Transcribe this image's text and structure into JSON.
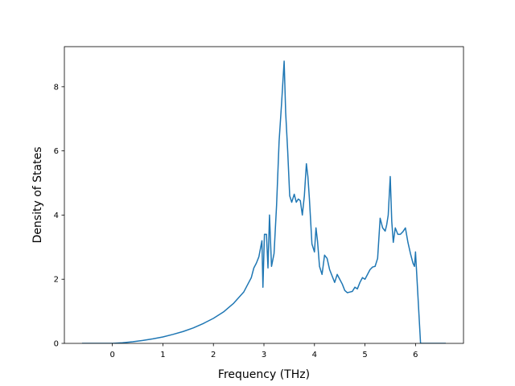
{
  "chart_data": {
    "type": "line",
    "title": "",
    "xlabel": "Frequency (THz)",
    "ylabel": "Density of States",
    "xlim": [
      -0.95,
      6.95
    ],
    "ylim": [
      0,
      9.25
    ],
    "xticks": [
      0,
      1,
      2,
      3,
      4,
      5,
      6
    ],
    "yticks": [
      0,
      2,
      4,
      6,
      8
    ],
    "xtick_labels": [
      "0",
      "1",
      "2",
      "3",
      "4",
      "5",
      "6"
    ],
    "ytick_labels": [
      "0",
      "2",
      "4",
      "6",
      "8"
    ],
    "grid": false,
    "legend": "none",
    "color": "#1f77b4",
    "series": [
      {
        "x": [
          -0.6,
          -0.4,
          -0.2,
          0.0,
          0.2,
          0.4,
          0.6,
          0.8,
          1.0,
          1.2,
          1.4,
          1.6,
          1.8,
          2.0,
          2.2,
          2.4,
          2.6,
          2.7,
          2.75,
          2.8,
          2.85,
          2.9,
          2.93,
          2.96,
          2.98,
          3.01,
          3.05,
          3.08,
          3.11,
          3.15,
          3.2,
          3.25,
          3.3,
          3.35,
          3.4,
          3.43,
          3.47,
          3.51,
          3.55,
          3.6,
          3.64,
          3.68,
          3.72,
          3.76,
          3.8,
          3.84,
          3.87,
          3.9,
          3.95,
          4.0,
          4.03,
          4.06,
          4.1,
          4.15,
          4.2,
          4.25,
          4.3,
          4.35,
          4.4,
          4.45,
          4.5,
          4.55,
          4.6,
          4.65,
          4.7,
          4.75,
          4.8,
          4.85,
          4.9,
          4.95,
          5.0,
          5.05,
          5.1,
          5.15,
          5.2,
          5.25,
          5.3,
          5.35,
          5.4,
          5.43,
          5.46,
          5.5,
          5.53,
          5.56,
          5.6,
          5.65,
          5.7,
          5.75,
          5.8,
          5.85,
          5.9,
          5.95,
          5.98,
          6.0,
          6.1,
          6.3,
          6.6
        ],
        "y": [
          0,
          0,
          0,
          0,
          0.02,
          0.05,
          0.09,
          0.14,
          0.2,
          0.28,
          0.37,
          0.48,
          0.62,
          0.78,
          0.98,
          1.25,
          1.6,
          1.9,
          2.05,
          2.35,
          2.5,
          2.7,
          2.95,
          3.2,
          1.75,
          3.4,
          3.4,
          2.35,
          4.0,
          2.4,
          2.8,
          4.3,
          6.3,
          7.5,
          8.8,
          7.2,
          6.0,
          4.6,
          4.4,
          4.65,
          4.4,
          4.5,
          4.45,
          4.0,
          4.6,
          5.6,
          5.2,
          4.5,
          3.1,
          2.85,
          3.6,
          3.2,
          2.4,
          2.15,
          2.75,
          2.65,
          2.3,
          2.1,
          1.9,
          2.15,
          2.0,
          1.85,
          1.65,
          1.58,
          1.6,
          1.62,
          1.75,
          1.7,
          1.9,
          2.05,
          2.0,
          2.15,
          2.3,
          2.38,
          2.4,
          2.65,
          3.9,
          3.6,
          3.5,
          3.7,
          4.0,
          5.2,
          3.8,
          3.15,
          3.6,
          3.4,
          3.4,
          3.48,
          3.6,
          3.15,
          2.8,
          2.5,
          2.4,
          2.85,
          0,
          0,
          0
        ]
      }
    ]
  }
}
